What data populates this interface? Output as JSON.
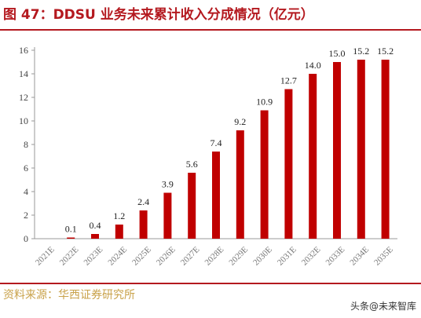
{
  "header": {
    "title": "图 47：DDSU 业务未来累计收入分成情况（亿元）"
  },
  "footer": {
    "source": "资料来源：华西证券研究所",
    "watermark": "头条@未来智库"
  },
  "colors": {
    "accent": "#b4191f",
    "bar": "#c00000",
    "source_text": "#c9a24a"
  },
  "chart_data": {
    "type": "bar",
    "title": "图 47：DDSU 业务未来累计收入分成情况（亿元）",
    "xlabel": "",
    "ylabel": "",
    "categories": [
      "2021E",
      "2022E",
      "2023E",
      "2024E",
      "2025E",
      "2026E",
      "2027E",
      "2028E",
      "2029E",
      "2030E",
      "2031E",
      "2032E",
      "2033E",
      "2034E",
      "2035E"
    ],
    "values": [
      0,
      0.1,
      0.4,
      1.2,
      2.4,
      3.9,
      5.6,
      7.4,
      9.2,
      10.9,
      12.7,
      14.0,
      15.0,
      15.2,
      15.2
    ],
    "data_labels": [
      "",
      "0.1",
      "0.4",
      "1.2",
      "2.4",
      "3.9",
      "5.6",
      "7.4",
      "9.2",
      "10.9",
      "12.7",
      "14.0",
      "15.0",
      "15.2",
      "15.2"
    ],
    "ylim": [
      0,
      16
    ],
    "yticks": [
      0,
      2,
      4,
      6,
      8,
      10,
      12,
      14,
      16
    ],
    "grid": false,
    "legend": "none"
  }
}
